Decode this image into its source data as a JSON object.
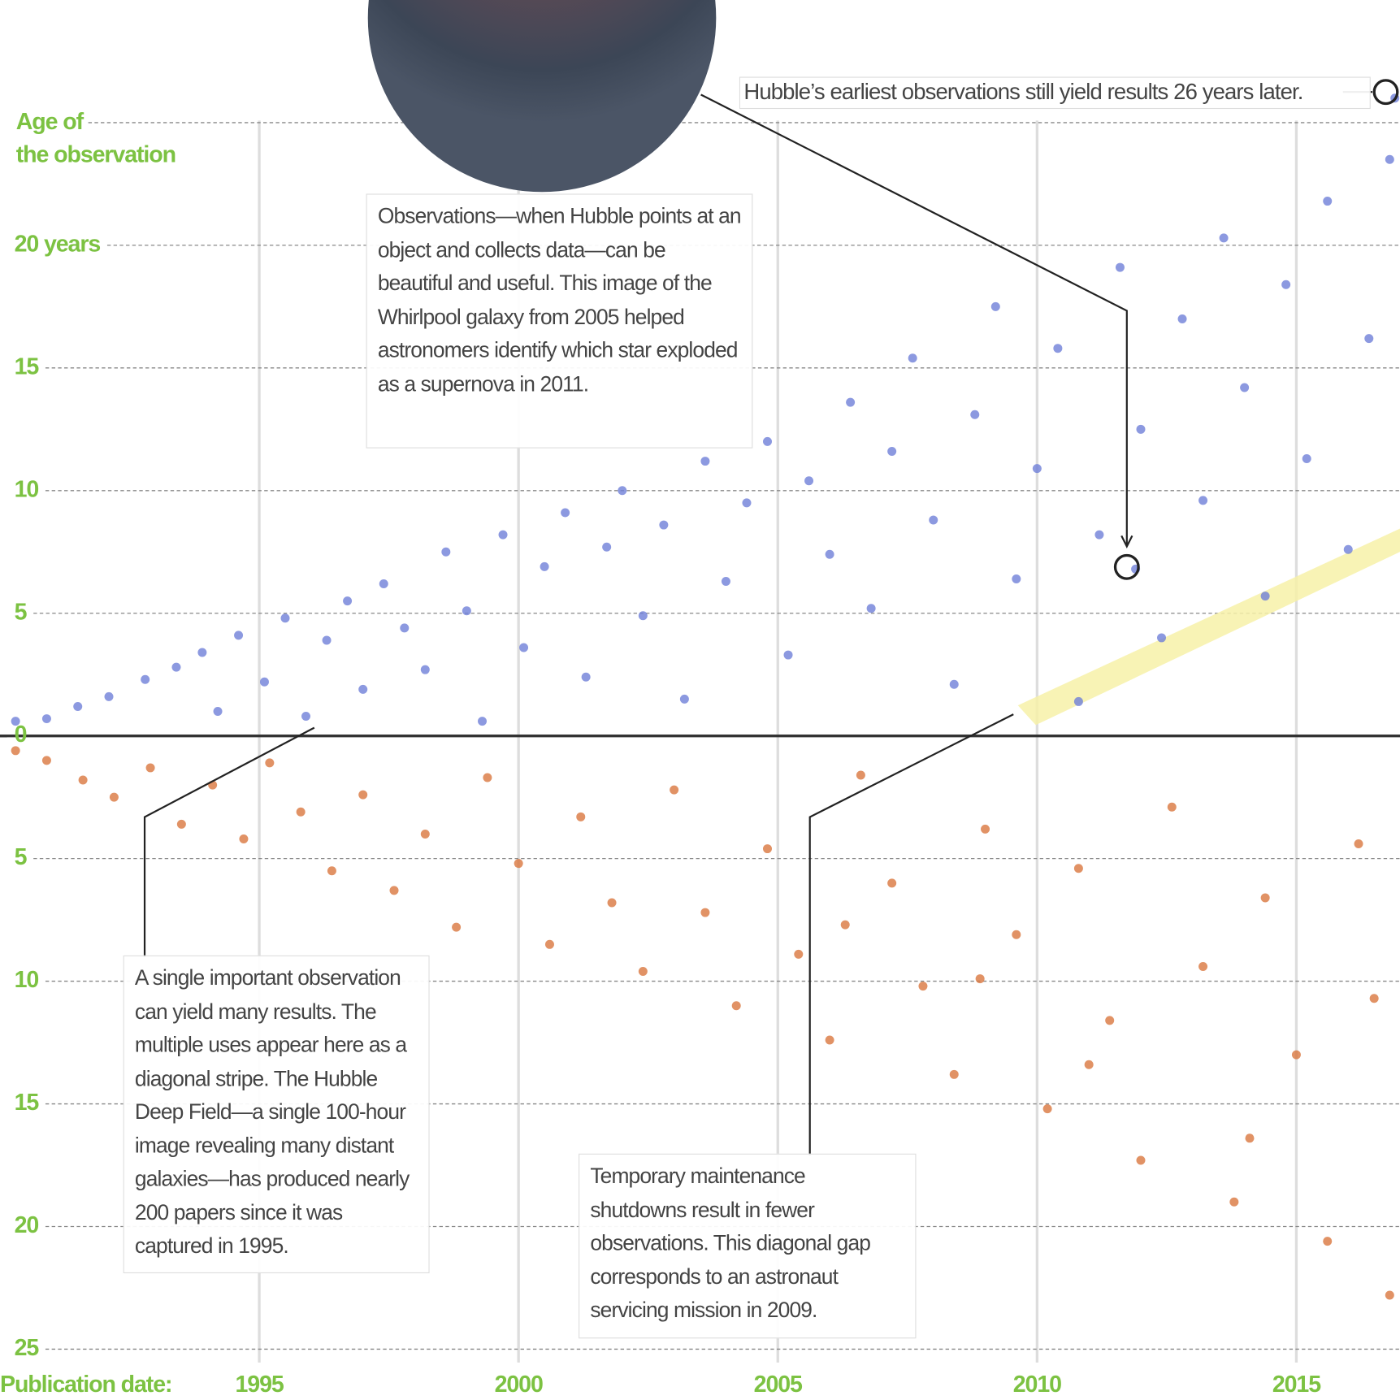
{
  "chart_data": {
    "type": "scatter",
    "x_label": "Publication date:",
    "xlim": [
      1990,
      2017
    ],
    "xticks": [
      1995,
      2000,
      2005,
      2010,
      2015
    ],
    "ylim": [
      -25,
      30
    ],
    "yticks": [
      {
        "value": 25,
        "label": "Age of the observation"
      },
      {
        "value": 20,
        "label": "20 years"
      },
      15,
      10,
      5,
      0,
      {
        "value": -5,
        "label": "5"
      },
      {
        "value": -10,
        "label": "10"
      },
      {
        "value": -15,
        "label": "15"
      },
      {
        "value": -20,
        "label": "20"
      },
      {
        "value": -25,
        "label": "25"
      }
    ],
    "grid": true,
    "series": [
      {
        "color": "#6f7fd8",
        "x": [
          1990.3,
          1990.9,
          1991.5,
          1992.1,
          1992.8,
          1993.4,
          1993.9,
          1994.2,
          1994.6,
          1995.1,
          1995.5,
          1995.9,
          1996.3,
          1996.7,
          1997.0,
          1997.4,
          1997.8,
          1998.2,
          1998.6,
          1999.0,
          1999.3,
          1999.7,
          2000.1,
          2000.5,
          2000.9,
          2001.3,
          2001.7,
          2002.0,
          2002.4,
          2002.8,
          2003.2,
          2003.6,
          2004.0,
          2004.4,
          2004.8,
          2005.2,
          2005.6,
          2006.0,
          2006.4,
          2006.8,
          2007.2,
          2007.6,
          2008.0,
          2008.4,
          2008.8,
          2009.2,
          2009.6,
          2010.0,
          2010.4,
          2010.8,
          2011.2,
          2011.6,
          2012.0,
          2012.4,
          2012.8,
          2013.2,
          2013.6,
          2014.0,
          2014.4,
          2014.8,
          2015.2,
          2015.6,
          2016.0,
          2016.4,
          2016.8,
          2016.9,
          2011.9
        ],
        "values": [
          0.6,
          0.7,
          1.2,
          1.6,
          2.3,
          2.8,
          3.4,
          1.0,
          4.1,
          2.2,
          4.8,
          0.8,
          3.9,
          5.5,
          1.9,
          6.2,
          4.4,
          2.7,
          7.5,
          5.1,
          0.6,
          8.2,
          3.6,
          6.9,
          9.1,
          2.4,
          7.7,
          10.0,
          4.9,
          8.6,
          1.5,
          11.2,
          6.3,
          9.5,
          12.0,
          3.3,
          10.4,
          7.4,
          13.6,
          5.2,
          11.6,
          15.4,
          8.8,
          2.1,
          13.1,
          17.5,
          6.4,
          10.9,
          15.8,
          1.4,
          8.2,
          19.1,
          12.5,
          4.0,
          17.0,
          9.6,
          20.3,
          14.2,
          5.7,
          18.4,
          11.3,
          21.8,
          7.6,
          16.2,
          23.5,
          26.0,
          6.8
        ]
      },
      {
        "color": "#d9773f",
        "x": [
          1990.3,
          1990.9,
          1991.6,
          1992.2,
          1992.9,
          1993.5,
          1994.1,
          1994.7,
          1995.2,
          1995.8,
          1996.4,
          1997.0,
          1997.6,
          1998.2,
          1998.8,
          1999.4,
          2000.0,
          2000.6,
          2001.2,
          2001.8,
          2002.4,
          2003.0,
          2003.6,
          2004.2,
          2004.8,
          2005.4,
          2006.0,
          2006.6,
          2007.2,
          2007.8,
          2008.4,
          2009.0,
          2009.6,
          2010.2,
          2010.8,
          2011.4,
          2012.0,
          2012.6,
          2013.2,
          2013.8,
          2014.4,
          2015.0,
          2015.6,
          2016.2,
          2016.8,
          2016.5,
          2014.1,
          2011.0,
          2008.9,
          2006.3
        ],
        "values": [
          -0.6,
          -1.0,
          -1.8,
          -2.5,
          -1.3,
          -3.6,
          -2.0,
          -4.2,
          -1.1,
          -3.1,
          -5.5,
          -2.4,
          -6.3,
          -4.0,
          -7.8,
          -1.7,
          -5.2,
          -8.5,
          -3.3,
          -6.8,
          -9.6,
          -2.2,
          -7.2,
          -11.0,
          -4.6,
          -8.9,
          -12.4,
          -1.6,
          -6.0,
          -10.2,
          -13.8,
          -3.8,
          -8.1,
          -15.2,
          -5.4,
          -11.6,
          -17.3,
          -2.9,
          -9.4,
          -19.0,
          -6.6,
          -13.0,
          -20.6,
          -4.4,
          -22.8,
          -10.7,
          -16.4,
          -13.4,
          -9.9,
          -7.7
        ]
      }
    ],
    "annotations": [
      "Hubble’s earliest observations still yield results 26 years later.",
      "Observations—when Hubble points at an object and collects data—can be beautiful and useful. This image of the Whirlpool galaxy from 2005 helped astronomers identify which star exploded as a supernova in 2011.",
      "A single important observation can yield many results. The multiple uses appear here as a diagonal stripe. The Hubble Deep Field—a single 100-hour image revealing many distant galaxies—has produced nearly 200 papers since it was captured in 1995.",
      "Temporary maintenance shutdowns result in fewer observations. This diagonal gap corresponds to an astronaut servicing mission in 2009."
    ]
  }
}
